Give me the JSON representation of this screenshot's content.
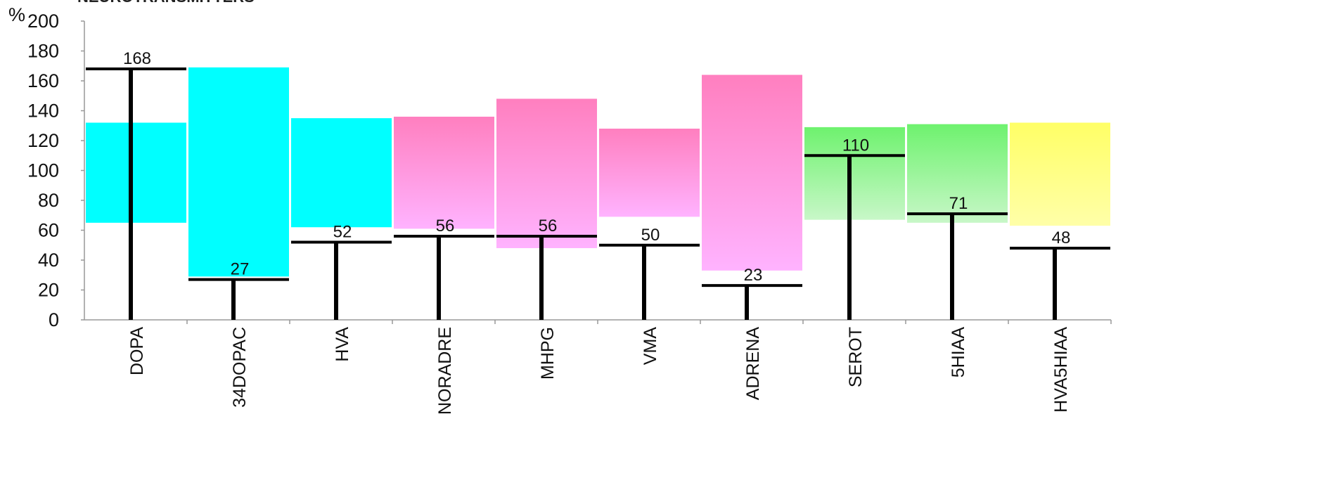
{
  "chart_data": {
    "type": "bar",
    "title": "NEUROTRANSMITTERS",
    "y_unit_label": "%",
    "ylim": [
      0,
      200
    ],
    "y_ticks": [
      "0",
      "20",
      "40",
      "60",
      "80",
      "100",
      "120",
      "140",
      "160",
      "180",
      "200"
    ],
    "grid": false,
    "categories": [
      "DOPA",
      "34DOPAC",
      "HVA",
      "NORADRE",
      "MHPG",
      "VMA",
      "ADRENA",
      "SEROT",
      "5HIAA",
      "HVA5HIAA"
    ],
    "values": [
      168,
      27,
      52,
      56,
      56,
      50,
      23,
      110,
      71,
      48
    ],
    "value_labels": [
      "168",
      "27",
      "52",
      "56",
      "56",
      "50",
      "23",
      "110",
      "71",
      "48"
    ],
    "reference_ranges": [
      {
        "low": 65,
        "high": 132,
        "color": "cyan"
      },
      {
        "low": 29,
        "high": 169,
        "color": "cyan"
      },
      {
        "low": 62,
        "high": 135,
        "color": "cyan"
      },
      {
        "low": 61,
        "high": 136,
        "color": "pink"
      },
      {
        "low": 48,
        "high": 148,
        "color": "pink"
      },
      {
        "low": 69,
        "high": 128,
        "color": "pink"
      },
      {
        "low": 33,
        "high": 164,
        "color": "pink"
      },
      {
        "low": 67,
        "high": 129,
        "color": "green"
      },
      {
        "low": 65,
        "high": 131,
        "color": "green"
      },
      {
        "low": 63,
        "high": 132,
        "color": "yellow"
      }
    ],
    "colors": {
      "cyan": "#00ffff",
      "pink_top": "#ff7fbf",
      "pink_bottom": "#ffb3ff",
      "green_top": "#6ef26e",
      "green_bottom": "#c8f7c8",
      "yellow_top": "#ffff66",
      "yellow_bottom": "#ffffa8",
      "marker": "#000000",
      "axis": "#999999"
    }
  }
}
